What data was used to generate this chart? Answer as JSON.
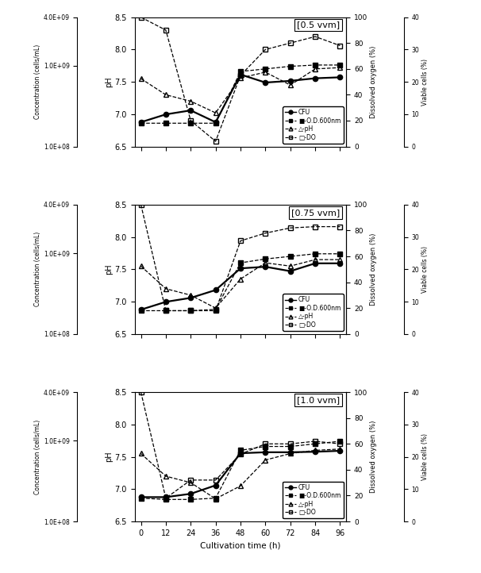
{
  "time": [
    0,
    12,
    24,
    36,
    48,
    60,
    72,
    84,
    96
  ],
  "panels": [
    {
      "title": "[0.5 vvm]",
      "CFU_raw": [
        200000000.0,
        250000000.0,
        280000000.0,
        200000000.0,
        780000000.0,
        620000000.0,
        650000000.0,
        700000000.0,
        720000000.0
      ],
      "OD_raw": [
        0.18,
        0.18,
        0.18,
        0.18,
        0.58,
        0.6,
        0.62,
        0.63,
        0.63
      ],
      "pH": [
        7.55,
        7.3,
        7.2,
        7.02,
        7.56,
        7.65,
        7.45,
        7.7,
        7.72
      ],
      "DO_raw": [
        100.0,
        90.0,
        20.0,
        4.0,
        55.0,
        75.0,
        80.0,
        85.0,
        78.0
      ]
    },
    {
      "title": "[0.75 vvm]",
      "CFU_raw": [
        200000000.0,
        250000000.0,
        280000000.0,
        350000000.0,
        650000000.0,
        680000000.0,
        600000000.0,
        750000000.0,
        750000000.0
      ],
      "OD_raw": [
        0.18,
        0.18,
        0.18,
        0.19,
        0.55,
        0.58,
        0.6,
        0.62,
        0.62
      ],
      "pH": [
        7.55,
        7.2,
        7.1,
        6.9,
        7.35,
        7.6,
        7.55,
        7.65,
        7.65
      ],
      "DO_raw": [
        100.0,
        18.0,
        18.0,
        18.0,
        72.0,
        78.0,
        82.0,
        83.0,
        83.0
      ]
    },
    {
      "title": "[1.0 vvm]",
      "CFU_raw": [
        200000000.0,
        200000000.0,
        220000000.0,
        280000000.0,
        700000000.0,
        720000000.0,
        720000000.0,
        730000000.0,
        750000000.0
      ],
      "OD_raw": [
        0.18,
        0.17,
        0.17,
        0.18,
        0.55,
        0.58,
        0.58,
        0.6,
        0.62
      ],
      "pH": [
        7.55,
        7.2,
        7.1,
        6.85,
        7.05,
        7.45,
        7.55,
        7.6,
        7.62
      ],
      "DO_raw": [
        100.0,
        18.0,
        32.0,
        32.0,
        52.0,
        60.0,
        60.0,
        62.0,
        60.0
      ]
    }
  ],
  "xlabel": "Cultivation time (h)",
  "ylabel_cfu": "Concentration (cells/mL)",
  "ylabel_ph": "pH",
  "ylabel_do": "Dissolved oxygen (%)",
  "ylabel_viable": "Viable cells (%)",
  "pH_ylim": [
    6.5,
    8.5
  ],
  "pH_yticks": [
    6.5,
    7.0,
    7.5,
    8.0,
    8.5
  ],
  "DO_ylim": [
    0.0,
    100.0
  ],
  "DO_yticks": [
    0.0,
    20.0,
    40.0,
    60.0,
    80.0,
    100.0
  ],
  "CFU_log_min": 8,
  "CFU_log_max": 10,
  "CFU_yticks_labels": [
    "1.0E+08",
    "1.0E+09",
    "4.0E+09"
  ],
  "CFU_yticks_vals": [
    100000000.0,
    1000000000.0,
    4000000000.0
  ],
  "OD_ylim": [
    0.0,
    1.0
  ],
  "xticks": [
    0,
    12,
    24,
    36,
    48,
    60,
    72,
    84,
    96
  ],
  "xlim": [
    -3,
    99
  ],
  "viable_yticks": [
    0,
    10,
    20,
    30,
    40
  ],
  "viable_ytick_labels": [
    "0",
    "10",
    "20",
    "30",
    "40"
  ]
}
